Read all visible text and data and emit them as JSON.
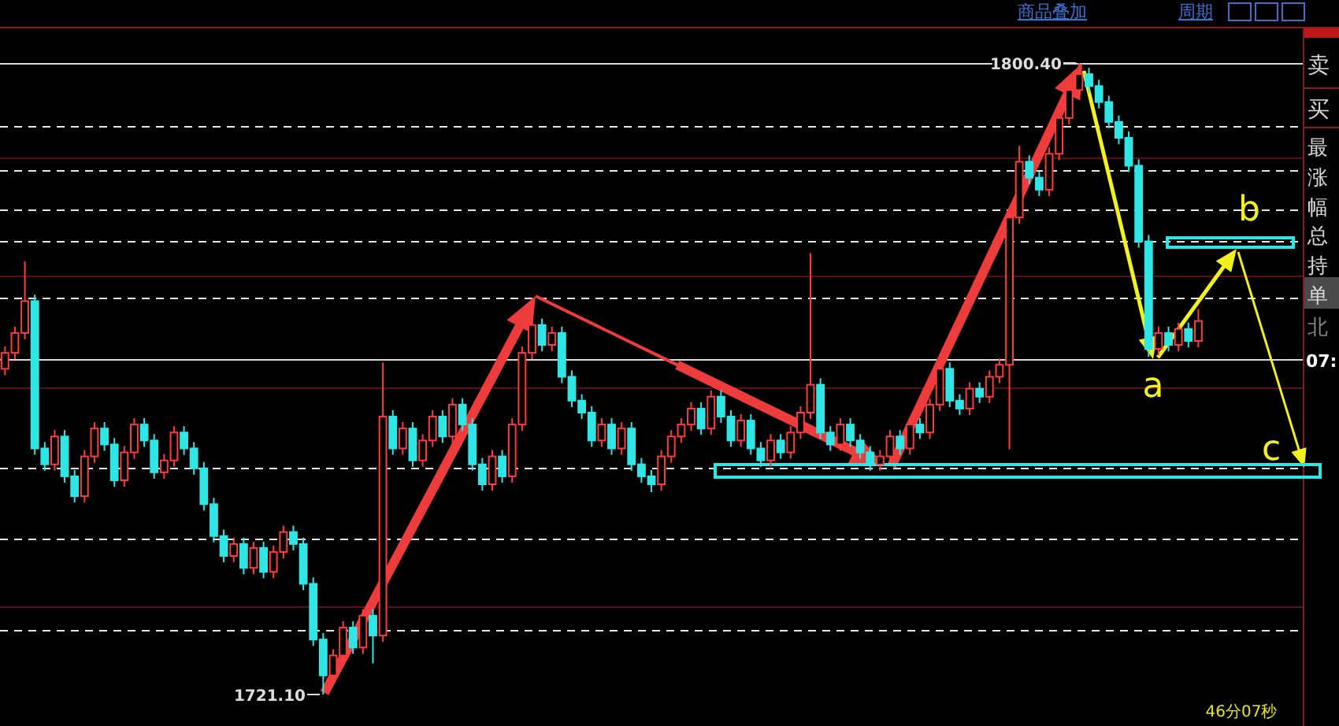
{
  "chart_data": {
    "type": "candlestick",
    "categories": [
      null,
      null,
      null,
      null,
      null,
      null,
      null,
      null,
      null,
      null,
      null,
      null,
      null,
      null,
      null,
      null,
      null,
      null,
      null,
      null,
      null,
      null,
      null,
      null,
      null,
      null,
      null,
      null,
      null,
      null,
      null,
      null,
      null,
      null,
      null,
      null,
      null,
      null,
      null,
      null,
      null,
      null,
      null,
      null,
      null,
      null,
      null,
      null,
      null,
      null,
      null,
      null,
      null,
      null,
      null,
      null,
      null,
      null,
      null,
      null,
      null,
      null,
      null,
      null,
      null,
      null,
      null,
      null,
      null,
      null,
      null,
      null,
      null,
      null,
      null,
      null,
      null,
      null,
      null,
      null,
      null,
      null,
      null,
      null,
      null,
      null,
      null,
      null,
      null,
      null,
      null,
      null,
      null,
      null,
      null,
      null,
      null,
      null,
      null,
      null,
      null,
      null,
      null,
      null,
      null,
      null,
      null,
      null,
      null,
      null,
      null,
      null,
      null,
      null,
      null,
      null,
      null,
      null,
      null,
      null,
      null
    ],
    "colors": [
      "#ff3b3b",
      "#ff3b3b",
      "#ff3b3b",
      "#2ee6e6",
      "#2ee6e6",
      "#ff3b3b",
      "#2ee6e6",
      "#2ee6e6",
      "#ff3b3b",
      "#ff3b3b",
      "#2ee6e6",
      "#2ee6e6",
      "#ff3b3b",
      "#ff3b3b",
      "#2ee6e6",
      "#2ee6e6",
      "#ff3b3b",
      "#ff3b3b",
      "#2ee6e6",
      "#2ee6e6",
      "#2ee6e6",
      "#2ee6e6",
      "#2ee6e6",
      "#ff3b3b",
      "#2ee6e6",
      "#ff3b3b",
      "#2ee6e6",
      "#ff3b3b",
      "#ff3b3b",
      "#2ee6e6",
      "#2ee6e6",
      "#2ee6e6",
      "#2ee6e6",
      "#ff3b3b",
      "#ff3b3b",
      "#2ee6e6",
      "#ff3b3b",
      "#2ee6e6",
      "#ff3b3b",
      "#2ee6e6",
      "#ff3b3b",
      "#2ee6e6",
      "#ff3b3b",
      "#ff3b3b",
      "#2ee6e6",
      "#ff3b3b",
      "#2ee6e6",
      "#2ee6e6",
      "#2ee6e6",
      "#ff3b3b",
      "#2ee6e6",
      "#ff3b3b",
      "#ff3b3b",
      "#ff3b3b",
      "#2ee6e6",
      "#ff3b3b",
      "#2ee6e6",
      "#2ee6e6",
      "#2ee6e6",
      "#2ee6e6",
      "#ff3b3b",
      "#2ee6e6",
      "#ff3b3b",
      "#2ee6e6",
      "#2ee6e6",
      "#2ee6e6",
      "#ff3b3b",
      "#ff3b3b",
      "#ff3b3b",
      "#ff3b3b",
      "#2ee6e6",
      "#ff3b3b",
      "#2ee6e6",
      "#2ee6e6",
      "#ff3b3b",
      "#2ee6e6",
      "#2ee6e6",
      "#ff3b3b",
      "#2ee6e6",
      "#ff3b3b",
      "#ff3b3b",
      "#ff3b3b",
      "#2ee6e6",
      "#2ee6e6",
      "#ff3b3b",
      "#2ee6e6",
      "#2ee6e6",
      "#2ee6e6",
      "#ff3b3b",
      "#ff3b3b",
      "#2ee6e6",
      "#ff3b3b",
      "#2ee6e6",
      "#ff3b3b",
      "#ff3b3b",
      "#2ee6e6",
      "#2ee6e6",
      "#ff3b3b",
      "#2ee6e6",
      "#ff3b3b",
      "#ff3b3b",
      "#ff3b3b",
      "#ff3b3b",
      "#2ee6e6",
      "#2ee6e6",
      "#ff3b3b",
      "#ff3b3b",
      "#ff3b3b",
      "#ff3b3b",
      "#2ee6e6",
      "#2ee6e6",
      "#2ee6e6",
      "#2ee6e6",
      "#2ee6e6",
      "#2ee6e6",
      "#2ee6e6",
      "#ff3b3b",
      "#2ee6e6",
      "#ff3b3b",
      "#2ee6e6",
      "#ff3b3b"
    ],
    "ohlc": [
      [
        1762.0,
        1764.8,
        1761.2,
        1764.0
      ],
      [
        1764.0,
        1767.3,
        1763.2,
        1766.5
      ],
      [
        1766.5,
        1775.5,
        1765.7,
        1770.5
      ],
      [
        1770.5,
        1771.3,
        1751.2,
        1752.0
      ],
      [
        1752.0,
        1752.8,
        1749.2,
        1750.0
      ],
      [
        1750.0,
        1754.3,
        1749.2,
        1753.5
      ],
      [
        1753.5,
        1754.3,
        1747.7,
        1748.5
      ],
      [
        1748.5,
        1749.3,
        1745.2,
        1746.0
      ],
      [
        1746.0,
        1751.8,
        1745.2,
        1751.0
      ],
      [
        1751.0,
        1755.3,
        1750.2,
        1754.5
      ],
      [
        1754.5,
        1755.3,
        1751.7,
        1752.5
      ],
      [
        1752.5,
        1753.3,
        1747.2,
        1748.0
      ],
      [
        1748.0,
        1752.3,
        1747.2,
        1751.5
      ],
      [
        1751.5,
        1755.8,
        1750.7,
        1755.0
      ],
      [
        1755.0,
        1755.8,
        1752.2,
        1753.0
      ],
      [
        1753.0,
        1753.8,
        1748.2,
        1749.0
      ],
      [
        1749.0,
        1751.3,
        1748.2,
        1750.5
      ],
      [
        1750.5,
        1754.8,
        1749.7,
        1754.0
      ],
      [
        1754.0,
        1754.8,
        1751.2,
        1752.0
      ],
      [
        1752.0,
        1752.8,
        1748.7,
        1749.5
      ],
      [
        1749.5,
        1750.3,
        1744.2,
        1745.0
      ],
      [
        1745.0,
        1745.8,
        1740.2,
        1741.0
      ],
      [
        1741.0,
        1741.8,
        1737.7,
        1738.5
      ],
      [
        1738.5,
        1740.8,
        1737.7,
        1740.0
      ],
      [
        1740.0,
        1740.8,
        1736.2,
        1737.0
      ],
      [
        1737.0,
        1740.3,
        1736.2,
        1739.5
      ],
      [
        1739.5,
        1740.3,
        1735.7,
        1736.5
      ],
      [
        1736.5,
        1739.8,
        1735.7,
        1739.0
      ],
      [
        1739.0,
        1742.3,
        1738.2,
        1741.5
      ],
      [
        1741.5,
        1742.3,
        1739.2,
        1740.0
      ],
      [
        1740.0,
        1740.8,
        1734.2,
        1735.0
      ],
      [
        1735.0,
        1735.8,
        1727.2,
        1728.0
      ],
      [
        1728.0,
        1728.8,
        1721.1,
        1723.5
      ],
      [
        1723.5,
        1726.8,
        1722.7,
        1726.0
      ],
      [
        1726.0,
        1730.3,
        1725.2,
        1729.5
      ],
      [
        1729.5,
        1730.3,
        1726.2,
        1727.0
      ],
      [
        1727.0,
        1731.8,
        1726.2,
        1731.0
      ],
      [
        1731.0,
        1731.8,
        1725.0,
        1728.5
      ],
      [
        1728.5,
        1762.8,
        1727.7,
        1756.0
      ],
      [
        1756.0,
        1756.8,
        1751.2,
        1752.0
      ],
      [
        1752.0,
        1755.3,
        1751.2,
        1754.5
      ],
      [
        1754.5,
        1755.3,
        1749.7,
        1750.5
      ],
      [
        1750.5,
        1753.8,
        1749.7,
        1753.0
      ],
      [
        1753.0,
        1756.8,
        1752.2,
        1756.0
      ],
      [
        1756.0,
        1756.8,
        1752.7,
        1753.5
      ],
      [
        1753.5,
        1758.3,
        1752.7,
        1757.5
      ],
      [
        1757.5,
        1758.3,
        1754.2,
        1755.0
      ],
      [
        1755.0,
        1755.8,
        1749.2,
        1750.0
      ],
      [
        1750.0,
        1750.8,
        1746.7,
        1747.5
      ],
      [
        1747.5,
        1751.8,
        1746.7,
        1751.0
      ],
      [
        1751.0,
        1751.8,
        1747.7,
        1748.5
      ],
      [
        1748.5,
        1755.8,
        1747.7,
        1755.0
      ],
      [
        1755.0,
        1764.8,
        1754.2,
        1764.0
      ],
      [
        1764.0,
        1770.8,
        1763.2,
        1767.5
      ],
      [
        1767.5,
        1768.3,
        1764.2,
        1765.0
      ],
      [
        1765.0,
        1767.3,
        1764.2,
        1766.5
      ],
      [
        1766.5,
        1767.3,
        1760.2,
        1761.0
      ],
      [
        1761.0,
        1761.8,
        1757.2,
        1758.0
      ],
      [
        1758.0,
        1758.8,
        1755.7,
        1756.5
      ],
      [
        1756.5,
        1757.3,
        1752.2,
        1753.0
      ],
      [
        1753.0,
        1755.8,
        1752.2,
        1755.0
      ],
      [
        1755.0,
        1755.8,
        1751.2,
        1752.0
      ],
      [
        1752.0,
        1755.3,
        1751.2,
        1754.5
      ],
      [
        1754.5,
        1755.3,
        1749.2,
        1750.0
      ],
      [
        1750.0,
        1750.8,
        1747.7,
        1748.5
      ],
      [
        1748.5,
        1749.3,
        1746.5,
        1747.5
      ],
      [
        1747.5,
        1751.8,
        1746.7,
        1751.0
      ],
      [
        1751.0,
        1754.3,
        1750.2,
        1753.5
      ],
      [
        1753.5,
        1755.8,
        1752.7,
        1755.0
      ],
      [
        1755.0,
        1757.8,
        1754.2,
        1757.0
      ],
      [
        1757.0,
        1757.8,
        1753.7,
        1754.5
      ],
      [
        1754.5,
        1759.3,
        1753.7,
        1758.5
      ],
      [
        1758.5,
        1759.3,
        1755.2,
        1756.0
      ],
      [
        1756.0,
        1756.8,
        1752.2,
        1753.0
      ],
      [
        1753.0,
        1756.3,
        1752.2,
        1755.5
      ],
      [
        1755.5,
        1756.3,
        1751.2,
        1752.0
      ],
      [
        1752.0,
        1752.8,
        1749.7,
        1750.5
      ],
      [
        1750.5,
        1753.8,
        1749.7,
        1753.0
      ],
      [
        1753.0,
        1753.8,
        1750.7,
        1751.5
      ],
      [
        1751.5,
        1754.8,
        1750.7,
        1754.0
      ],
      [
        1754.0,
        1757.3,
        1753.2,
        1756.5
      ],
      [
        1756.5,
        1776.5,
        1755.7,
        1760.0
      ],
      [
        1760.0,
        1760.8,
        1753.2,
        1754.0
      ],
      [
        1754.0,
        1754.8,
        1751.7,
        1752.5
      ],
      [
        1752.5,
        1755.8,
        1751.7,
        1755.0
      ],
      [
        1755.0,
        1755.8,
        1752.2,
        1753.0
      ],
      [
        1753.0,
        1753.8,
        1750.7,
        1751.5
      ],
      [
        1751.5,
        1752.3,
        1749.2,
        1750.0
      ],
      [
        1750.0,
        1751.8,
        1749.2,
        1751.0
      ],
      [
        1751.0,
        1754.3,
        1750.2,
        1753.5
      ],
      [
        1753.5,
        1754.3,
        1751.2,
        1752.0
      ],
      [
        1752.0,
        1755.8,
        1751.2,
        1755.0
      ],
      [
        1755.0,
        1755.8,
        1753.2,
        1754.0
      ],
      [
        1754.0,
        1758.3,
        1753.2,
        1757.5
      ],
      [
        1757.5,
        1762.8,
        1756.7,
        1762.0
      ],
      [
        1762.0,
        1762.8,
        1757.2,
        1758.0
      ],
      [
        1758.0,
        1758.8,
        1756.2,
        1757.0
      ],
      [
        1757.0,
        1760.3,
        1756.2,
        1759.5
      ],
      [
        1759.5,
        1760.3,
        1757.7,
        1758.5
      ],
      [
        1758.5,
        1761.8,
        1757.7,
        1761.0
      ],
      [
        1761.0,
        1763.3,
        1760.2,
        1762.5
      ],
      [
        1762.5,
        1781.8,
        1751.9,
        1781.0
      ],
      [
        1781.0,
        1790.0,
        1780.2,
        1788.0
      ],
      [
        1788.0,
        1788.8,
        1785.2,
        1786.0
      ],
      [
        1786.0,
        1786.8,
        1783.7,
        1784.5
      ],
      [
        1784.5,
        1789.8,
        1783.7,
        1789.0
      ],
      [
        1789.0,
        1794.3,
        1788.2,
        1793.5
      ],
      [
        1793.5,
        1797.8,
        1792.7,
        1797.0
      ],
      [
        1797.0,
        1800.4,
        1796.2,
        1799.0
      ],
      [
        1799.0,
        1799.8,
        1796.7,
        1797.5
      ],
      [
        1797.5,
        1798.3,
        1794.7,
        1795.5
      ],
      [
        1795.5,
        1796.3,
        1792.2,
        1793.0
      ],
      [
        1793.0,
        1793.8,
        1790.2,
        1791.0
      ],
      [
        1791.0,
        1791.8,
        1786.7,
        1787.5
      ],
      [
        1787.5,
        1788.3,
        1777.2,
        1778.0
      ],
      [
        1778.0,
        1778.8,
        1763.5,
        1764.5
      ],
      [
        1764.5,
        1767.3,
        1763.7,
        1766.5
      ],
      [
        1766.5,
        1767.3,
        1764.2,
        1765.0
      ],
      [
        1765.0,
        1767.8,
        1764.2,
        1767.0
      ],
      [
        1767.0,
        1767.8,
        1764.7,
        1765.5
      ],
      [
        1765.5,
        1769.5,
        1764.7,
        1768.0
      ]
    ],
    "ref_lines": [
      {
        "axis": "y",
        "value": 1800.4,
        "color": "#d8d8d8",
        "line_style": "solid"
      },
      {
        "axis": "y",
        "value": 1763.2,
        "color": "#d8d8d8",
        "line_style": "solid"
      },
      {
        "axis": "y",
        "value": 1792.5,
        "color": "#e8e8e8",
        "line_style": "dashed"
      },
      {
        "axis": "y",
        "value": 1787.0,
        "color": "#e8e8e8",
        "line_style": "dashed"
      },
      {
        "axis": "y",
        "value": 1782.0,
        "color": "#e8e8e8",
        "line_style": "dashed"
      },
      {
        "axis": "y",
        "value": 1778.1,
        "color": "#e8e8e8",
        "line_style": "dashed"
      },
      {
        "axis": "y",
        "value": 1770.9,
        "color": "#e8e8e8",
        "line_style": "dashed"
      },
      {
        "axis": "y",
        "value": 1749.6,
        "color": "#e8e8e8",
        "line_style": "dashed"
      },
      {
        "axis": "y",
        "value": 1740.7,
        "color": "#e8e8e8",
        "line_style": "dashed"
      },
      {
        "axis": "y",
        "value": 1729.2,
        "color": "#e8e8e8",
        "line_style": "dashed"
      },
      {
        "axis": "y",
        "value": 1788.5,
        "color": "#5a1010",
        "line_style": "solid"
      },
      {
        "axis": "y",
        "value": 1773.7,
        "color": "#5a1010",
        "line_style": "solid"
      },
      {
        "axis": "y",
        "value": 1759.7,
        "color": "#5a1010",
        "line_style": "solid"
      },
      {
        "axis": "y",
        "value": 1732.2,
        "color": "#5a1010",
        "line_style": "solid"
      }
    ],
    "annotations": [
      "商品叠加",
      "周期",
      "卖",
      "买",
      "最",
      "涨",
      "幅",
      "总",
      "持",
      "单",
      "北",
      "07:",
      "a",
      "b",
      "c",
      "46分07秒",
      "1800.40",
      "1721.10"
    ]
  }
}
